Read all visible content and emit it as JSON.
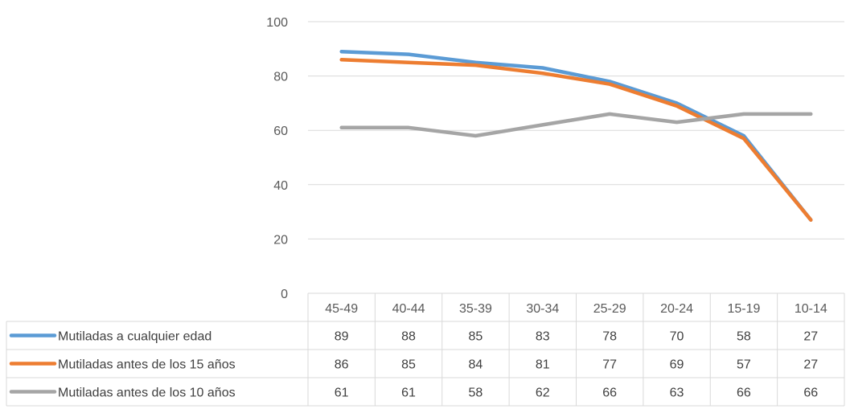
{
  "chart_data": {
    "type": "line",
    "categories": [
      "45-49",
      "40-44",
      "35-39",
      "30-34",
      "25-29",
      "20-24",
      "15-19",
      "10-14"
    ],
    "series": [
      {
        "name": "Mutiladas a cualquier edad",
        "color": "#5B9BD5",
        "values": [
          89,
          88,
          85,
          83,
          78,
          70,
          58,
          27
        ]
      },
      {
        "name": "Mutiladas antes de los 15 años",
        "color": "#ED7D31",
        "values": [
          86,
          85,
          84,
          81,
          77,
          69,
          57,
          27
        ]
      },
      {
        "name": "Mutiladas antes de los 10 años",
        "color": "#A5A5A5",
        "values": [
          61,
          61,
          58,
          62,
          66,
          63,
          66,
          66
        ]
      }
    ],
    "yticks": [
      0,
      20,
      40,
      60,
      80,
      100
    ],
    "ylim": [
      0,
      100
    ],
    "grid": true,
    "legend": "data-table"
  }
}
